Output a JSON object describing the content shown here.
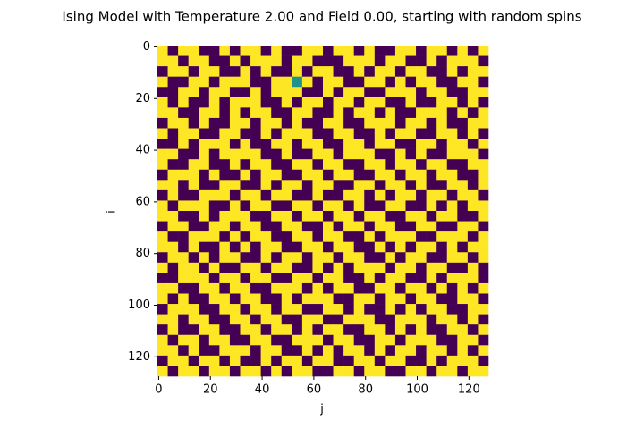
{
  "chart_data": {
    "type": "heatmap",
    "title": "Ising Model with Temperature 2.00 and Field 0.00, starting with random spins",
    "xlabel": "j",
    "ylabel": "i",
    "xlim": [
      -0.5,
      127.5
    ],
    "ylim": [
      127.5,
      -0.5
    ],
    "xticks": [
      0,
      20,
      40,
      60,
      80,
      100,
      120
    ],
    "yticks": [
      0,
      20,
      40,
      60,
      80,
      100,
      120
    ],
    "cmap": [
      "#440154",
      "#21918c",
      "#fde725"
    ],
    "clim": [
      -1,
      1
    ],
    "z": [
      [
        1,
        -1,
        1,
        1,
        -1,
        -1,
        1,
        -1,
        1,
        1,
        -1,
        1,
        -1,
        -1,
        1,
        1,
        -1,
        1,
        1,
        -1,
        1,
        -1,
        -1,
        1,
        1,
        -1,
        1,
        1,
        -1,
        1,
        -1,
        1
      ],
      [
        1,
        1,
        -1,
        1,
        1,
        -1,
        -1,
        1,
        -1,
        1,
        1,
        1,
        -1,
        1,
        1,
        -1,
        -1,
        -1,
        1,
        1,
        1,
        -1,
        1,
        1,
        -1,
        -1,
        1,
        -1,
        1,
        1,
        1,
        -1
      ],
      [
        -1,
        1,
        1,
        -1,
        1,
        1,
        -1,
        -1,
        1,
        -1,
        1,
        -1,
        -1,
        1,
        -1,
        1,
        1,
        -1,
        -1,
        1,
        -1,
        1,
        1,
        -1,
        1,
        1,
        -1,
        -1,
        1,
        -1,
        1,
        1
      ],
      [
        1,
        -1,
        -1,
        1,
        1,
        -1,
        1,
        1,
        1,
        -1,
        -1,
        1,
        1,
        0,
        1,
        -1,
        1,
        1,
        -1,
        -1,
        1,
        1,
        -1,
        1,
        -1,
        1,
        1,
        -1,
        -1,
        1,
        1,
        -1
      ],
      [
        -1,
        -1,
        1,
        1,
        -1,
        1,
        1,
        -1,
        -1,
        1,
        -1,
        1,
        1,
        1,
        -1,
        -1,
        1,
        -1,
        1,
        1,
        -1,
        -1,
        1,
        1,
        1,
        -1,
        1,
        1,
        -1,
        -1,
        1,
        1
      ],
      [
        1,
        -1,
        1,
        -1,
        -1,
        1,
        -1,
        1,
        1,
        1,
        -1,
        -1,
        1,
        -1,
        1,
        1,
        -1,
        1,
        1,
        -1,
        1,
        1,
        -1,
        -1,
        1,
        -1,
        -1,
        1,
        1,
        -1,
        1,
        -1
      ],
      [
        1,
        1,
        -1,
        -1,
        1,
        1,
        -1,
        1,
        -1,
        1,
        1,
        -1,
        -1,
        1,
        1,
        -1,
        -1,
        1,
        -1,
        1,
        1,
        -1,
        1,
        -1,
        -1,
        1,
        1,
        1,
        -1,
        1,
        -1,
        1
      ],
      [
        -1,
        1,
        1,
        -1,
        1,
        -1,
        -1,
        1,
        1,
        -1,
        1,
        1,
        -1,
        1,
        -1,
        -1,
        1,
        1,
        -1,
        -1,
        1,
        1,
        1,
        -1,
        1,
        1,
        -1,
        1,
        -1,
        -1,
        1,
        1
      ],
      [
        1,
        -1,
        1,
        1,
        -1,
        -1,
        1,
        1,
        -1,
        -1,
        1,
        -1,
        1,
        1,
        1,
        -1,
        -1,
        1,
        1,
        -1,
        -1,
        1,
        -1,
        1,
        1,
        -1,
        -1,
        1,
        1,
        -1,
        1,
        -1
      ],
      [
        -1,
        -1,
        1,
        -1,
        1,
        1,
        1,
        -1,
        1,
        -1,
        -1,
        1,
        1,
        -1,
        1,
        1,
        -1,
        -1,
        1,
        1,
        -1,
        1,
        1,
        -1,
        -1,
        1,
        1,
        -1,
        1,
        1,
        -1,
        1
      ],
      [
        1,
        1,
        -1,
        -1,
        1,
        -1,
        1,
        1,
        1,
        1,
        -1,
        -1,
        1,
        -1,
        -1,
        1,
        1,
        -1,
        1,
        1,
        1,
        -1,
        -1,
        1,
        -1,
        1,
        -1,
        -1,
        1,
        1,
        1,
        -1
      ],
      [
        1,
        -1,
        -1,
        1,
        1,
        -1,
        -1,
        1,
        -1,
        1,
        1,
        -1,
        -1,
        1,
        1,
        -1,
        1,
        1,
        -1,
        -1,
        1,
        1,
        -1,
        1,
        1,
        -1,
        1,
        1,
        -1,
        -1,
        1,
        1
      ],
      [
        -1,
        1,
        1,
        1,
        -1,
        1,
        -1,
        -1,
        1,
        -1,
        1,
        1,
        -1,
        -1,
        1,
        1,
        -1,
        1,
        1,
        -1,
        -1,
        1,
        1,
        -1,
        1,
        1,
        -1,
        1,
        1,
        -1,
        -1,
        1
      ],
      [
        1,
        1,
        -1,
        1,
        -1,
        -1,
        1,
        1,
        -1,
        -1,
        1,
        -1,
        1,
        1,
        -1,
        1,
        1,
        -1,
        -1,
        1,
        1,
        -1,
        1,
        1,
        -1,
        1,
        -1,
        -1,
        1,
        1,
        -1,
        1
      ],
      [
        -1,
        1,
        -1,
        -1,
        1,
        1,
        1,
        -1,
        1,
        1,
        -1,
        1,
        1,
        -1,
        -1,
        1,
        -1,
        -1,
        1,
        1,
        -1,
        1,
        -1,
        1,
        1,
        -1,
        1,
        1,
        -1,
        1,
        1,
        -1
      ],
      [
        1,
        -1,
        1,
        1,
        1,
        -1,
        -1,
        1,
        -1,
        1,
        1,
        -1,
        -1,
        1,
        1,
        -1,
        1,
        1,
        -1,
        1,
        -1,
        -1,
        1,
        1,
        -1,
        -1,
        1,
        -1,
        1,
        -1,
        1,
        1
      ],
      [
        1,
        1,
        -1,
        -1,
        1,
        -1,
        1,
        1,
        1,
        -1,
        -1,
        1,
        1,
        -1,
        1,
        1,
        -1,
        1,
        1,
        -1,
        1,
        1,
        -1,
        -1,
        1,
        1,
        -1,
        1,
        1,
        -1,
        -1,
        1
      ],
      [
        -1,
        1,
        1,
        -1,
        -1,
        1,
        1,
        -1,
        1,
        1,
        -1,
        -1,
        1,
        1,
        -1,
        -1,
        1,
        -1,
        1,
        1,
        -1,
        1,
        1,
        -1,
        -1,
        1,
        1,
        -1,
        -1,
        1,
        1,
        -1
      ],
      [
        1,
        -1,
        -1,
        1,
        1,
        1,
        -1,
        1,
        -1,
        1,
        1,
        -1,
        -1,
        1,
        1,
        -1,
        1,
        1,
        -1,
        -1,
        1,
        -1,
        1,
        1,
        1,
        -1,
        -1,
        1,
        1,
        1,
        -1,
        1
      ],
      [
        1,
        1,
        -1,
        1,
        -1,
        -1,
        1,
        -1,
        1,
        -1,
        1,
        1,
        -1,
        -1,
        1,
        1,
        -1,
        1,
        1,
        -1,
        -1,
        1,
        -1,
        1,
        -1,
        1,
        1,
        -1,
        1,
        -1,
        1,
        1
      ],
      [
        -1,
        1,
        1,
        -1,
        1,
        -1,
        1,
        1,
        -1,
        -1,
        1,
        -1,
        1,
        1,
        -1,
        1,
        1,
        -1,
        1,
        1,
        -1,
        -1,
        1,
        -1,
        1,
        1,
        -1,
        -1,
        1,
        1,
        -1,
        1
      ],
      [
        1,
        -1,
        1,
        1,
        -1,
        1,
        -1,
        -1,
        1,
        1,
        -1,
        1,
        1,
        -1,
        -1,
        1,
        -1,
        1,
        -1,
        1,
        1,
        1,
        -1,
        1,
        1,
        -1,
        1,
        1,
        -1,
        -1,
        1,
        -1
      ],
      [
        -1,
        -1,
        1,
        1,
        1,
        -1,
        1,
        1,
        -1,
        1,
        1,
        -1,
        -1,
        1,
        1,
        -1,
        1,
        1,
        -1,
        -1,
        1,
        -1,
        1,
        1,
        -1,
        -1,
        1,
        -1,
        1,
        1,
        1,
        -1
      ],
      [
        1,
        1,
        -1,
        -1,
        1,
        1,
        -1,
        1,
        1,
        -1,
        -1,
        1,
        1,
        1,
        -1,
        1,
        -1,
        1,
        1,
        -1,
        -1,
        1,
        1,
        -1,
        1,
        1,
        -1,
        1,
        -1,
        1,
        -1,
        1
      ],
      [
        1,
        -1,
        1,
        -1,
        -1,
        1,
        1,
        -1,
        1,
        1,
        -1,
        -1,
        1,
        -1,
        1,
        1,
        1,
        -1,
        -1,
        1,
        1,
        -1,
        1,
        1,
        -1,
        1,
        1,
        -1,
        -1,
        1,
        1,
        -1
      ],
      [
        -1,
        1,
        1,
        1,
        -1,
        -1,
        1,
        1,
        -1,
        1,
        1,
        -1,
        1,
        1,
        -1,
        -1,
        1,
        1,
        -1,
        1,
        -1,
        -1,
        1,
        -1,
        1,
        -1,
        1,
        1,
        -1,
        -1,
        1,
        1
      ],
      [
        1,
        1,
        -1,
        1,
        1,
        -1,
        -1,
        1,
        1,
        -1,
        1,
        1,
        -1,
        -1,
        1,
        1,
        -1,
        -1,
        1,
        1,
        1,
        -1,
        -1,
        1,
        1,
        1,
        -1,
        1,
        1,
        -1,
        1,
        -1
      ],
      [
        -1,
        1,
        -1,
        -1,
        1,
        1,
        -1,
        -1,
        1,
        1,
        -1,
        1,
        1,
        -1,
        1,
        -1,
        1,
        1,
        -1,
        -1,
        1,
        1,
        -1,
        1,
        -1,
        1,
        -1,
        -1,
        1,
        1,
        -1,
        1
      ],
      [
        1,
        -1,
        1,
        1,
        -1,
        1,
        1,
        -1,
        -1,
        1,
        1,
        -1,
        -1,
        1,
        1,
        1,
        -1,
        1,
        1,
        -1,
        -1,
        1,
        1,
        -1,
        1,
        1,
        1,
        -1,
        -1,
        1,
        1,
        -1
      ],
      [
        1,
        1,
        -1,
        1,
        -1,
        -1,
        1,
        1,
        1,
        -1,
        1,
        1,
        -1,
        -1,
        1,
        -1,
        1,
        -1,
        1,
        1,
        -1,
        1,
        -1,
        1,
        1,
        -1,
        1,
        1,
        -1,
        1,
        -1,
        1
      ],
      [
        -1,
        1,
        1,
        -1,
        1,
        1,
        -1,
        1,
        -1,
        -1,
        1,
        -1,
        1,
        1,
        -1,
        1,
        1,
        -1,
        -1,
        1,
        1,
        -1,
        1,
        1,
        -1,
        -1,
        1,
        -1,
        1,
        1,
        1,
        -1
      ],
      [
        1,
        -1,
        1,
        1,
        -1,
        1,
        1,
        -1,
        1,
        1,
        -1,
        1,
        -1,
        1,
        1,
        -1,
        -1,
        1,
        1,
        -1,
        1,
        1,
        -1,
        -1,
        1,
        1,
        -1,
        1,
        1,
        -1,
        1,
        1
      ]
    ]
  }
}
